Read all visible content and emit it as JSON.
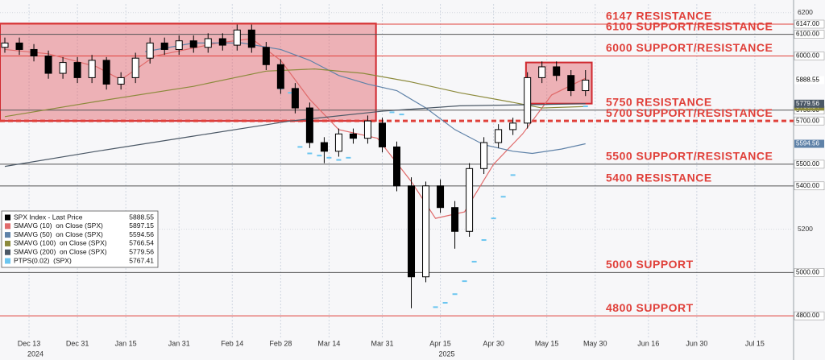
{
  "chart_data": {
    "type": "candlestick",
    "xlim": [
      0,
      164
    ],
    "ylim": [
      4700,
      6240
    ],
    "xticks": [
      {
        "value": 6,
        "label": "Dec 13"
      },
      {
        "value": 16,
        "label": "Dec 31"
      },
      {
        "value": 26,
        "label": "Jan 15"
      },
      {
        "value": 37,
        "label": "Jan 31"
      },
      {
        "value": 48,
        "label": "Feb 14"
      },
      {
        "value": 58,
        "label": "Feb 28"
      },
      {
        "value": 68,
        "label": "Mar 14"
      },
      {
        "value": 79,
        "label": "Mar 31"
      },
      {
        "value": 91,
        "label": "Apr 15"
      },
      {
        "value": 102,
        "label": "Apr 30"
      },
      {
        "value": 113,
        "label": "May 15"
      },
      {
        "value": 123,
        "label": "May 30"
      },
      {
        "value": 134,
        "label": "Jun 16"
      },
      {
        "value": 144,
        "label": "Jun 30"
      },
      {
        "value": 156,
        "label": "Jul 15"
      }
    ],
    "year_labels": [
      {
        "value": 6,
        "label": "2024"
      },
      {
        "value": 91,
        "label": "2025"
      }
    ],
    "yticks": [
      5200,
      6200
    ],
    "grid": true,
    "legend_position": "lower left",
    "candles": {
      "name": "SPX Index - Last Price",
      "up_color": "#ffffff",
      "down_color": "#000000",
      "x": [
        1,
        4,
        7,
        10,
        13,
        16,
        19,
        22,
        25,
        28,
        31,
        34,
        37,
        40,
        43,
        46,
        49,
        52,
        55,
        58,
        61,
        64,
        67,
        70,
        73,
        76,
        79,
        82,
        85,
        88,
        91,
        94,
        97,
        100,
        103,
        106,
        109,
        112,
        115,
        118,
        121
      ],
      "open": [
        6040,
        6060,
        6030,
        6000,
        5920,
        5970,
        5900,
        5980,
        5870,
        5900,
        5990,
        6060,
        6030,
        6070,
        6040,
        6080,
        6050,
        6120,
        6040,
        5960,
        5850,
        5760,
        5600,
        5560,
        5640,
        5620,
        5690,
        5580,
        5400,
        4980,
        5400,
        5300,
        5190,
        5480,
        5600,
        5660,
        5690,
        5900,
        5950,
        5910,
        5840
      ],
      "high": [
        6085,
        6085,
        6055,
        6025,
        5995,
        5995,
        6005,
        5995,
        5925,
        6015,
        6085,
        6085,
        6095,
        6095,
        6105,
        6105,
        6145,
        6145,
        6065,
        5985,
        5875,
        5785,
        5625,
        5665,
        5665,
        5725,
        5715,
        5605,
        5440,
        5420,
        5430,
        5330,
        5505,
        5625,
        5685,
        5715,
        5925,
        5975,
        5975,
        5935,
        5935
      ],
      "low": [
        6015,
        6005,
        5975,
        5895,
        5895,
        5875,
        5875,
        5845,
        5845,
        5875,
        5965,
        6005,
        6005,
        6015,
        6015,
        6025,
        6025,
        6015,
        5935,
        5825,
        5735,
        5575,
        5505,
        5535,
        5595,
        5595,
        5555,
        5375,
        4835,
        4955,
        5275,
        5110,
        5165,
        5455,
        5575,
        5635,
        5665,
        5875,
        5885,
        5815,
        5815
      ],
      "close": [
        6060,
        6030,
        6000,
        5920,
        5970,
        5900,
        5980,
        5870,
        5900,
        5990,
        6060,
        6030,
        6070,
        6040,
        6080,
        6050,
        6120,
        6040,
        5960,
        5850,
        5760,
        5600,
        5560,
        5640,
        5620,
        5700,
        5580,
        5400,
        4980,
        5400,
        5300,
        5190,
        5480,
        5600,
        5660,
        5690,
        5900,
        5950,
        5910,
        5840,
        5888.55
      ]
    },
    "lines": [
      {
        "name": "SMAVG (10)  on Close (SPX)",
        "color": "#e06a6a",
        "x": [
          1,
          10,
          20,
          25,
          32,
          45,
          52,
          58,
          64,
          70,
          78,
          85,
          90,
          96,
          102,
          108,
          114,
          121
        ],
        "values": [
          6030,
          6010,
          5950,
          5890,
          6000,
          6060,
          6080,
          5980,
          5800,
          5660,
          5620,
          5420,
          5250,
          5280,
          5500,
          5640,
          5820,
          5897.15
        ]
      },
      {
        "name": "SMAVG (50)  on Close (SPX)",
        "color": "#5f82a8",
        "x": [
          30,
          40,
          50,
          58,
          64,
          70,
          76,
          82,
          88,
          94,
          100,
          106,
          110,
          116,
          121
        ],
        "values": [
          6020,
          6060,
          6060,
          6030,
          5980,
          5910,
          5870,
          5840,
          5760,
          5660,
          5590,
          5560,
          5550,
          5570,
          5594.56
        ]
      },
      {
        "name": "SMAVG (100)  on Close (SPX)",
        "color": "#8c8a3c",
        "x": [
          1,
          20,
          40,
          55,
          65,
          75,
          85,
          95,
          105,
          112,
          121
        ],
        "values": [
          5720,
          5790,
          5860,
          5930,
          5940,
          5920,
          5880,
          5830,
          5790,
          5760,
          5766.54
        ]
      },
      {
        "name": "SMAVG (200)  on Close (SPX)",
        "color": "#4b5866",
        "x": [
          1,
          20,
          40,
          60,
          79,
          95,
          110,
          121
        ],
        "values": [
          5490,
          5560,
          5630,
          5700,
          5745,
          5770,
          5775,
          5779.56
        ]
      }
    ],
    "ptps": {
      "name": "PTPS(0.02)  (SPX)",
      "color": "#6cc6f0",
      "x": [
        58,
        60,
        62,
        64,
        66,
        68,
        70,
        72,
        81,
        83,
        90,
        92,
        94,
        96,
        98,
        100,
        102,
        104,
        106,
        121
      ],
      "values": [
        5850,
        5830,
        5580,
        5550,
        5540,
        5530,
        5520,
        5530,
        5740,
        5730,
        4840,
        4860,
        4900,
        4960,
        5050,
        5150,
        5250,
        5350,
        5450,
        5767.41
      ]
    },
    "zones": [
      {
        "x": [
          0,
          77.7
        ],
        "y": [
          5700,
          6150
        ],
        "color": "#e05a64"
      },
      {
        "x": [
          108.7,
          122.3
        ],
        "y": [
          5780,
          5970
        ],
        "color": "#e05a64"
      }
    ],
    "levels": [
      {
        "value": 6147,
        "tag": "6147.00",
        "label": "6147 RESISTANCE",
        "color": "#e0403a",
        "dashed": false
      },
      {
        "value": 6100,
        "tag": "6100.00",
        "label": "6100 SUPPORT/RESISTANCE",
        "color": "#555555",
        "dashed": false
      },
      {
        "value": 6000,
        "tag": "6000.00",
        "label": "6000 SUPPORT/RESISTANCE",
        "color": "#e0403a",
        "dashed": false
      },
      {
        "value": 5750,
        "tag": "5750.00",
        "label": "5750 RESISTANCE",
        "color": "#555555",
        "dashed": false
      },
      {
        "value": 5700,
        "tag": "5700.00",
        "label": "5700 SUPPORT/RESISTANCE",
        "color": "#e0403a",
        "dashed": true
      },
      {
        "value": 5500,
        "tag": "5500.00",
        "label": "5500 SUPPORT/RESISTANCE",
        "color": "#555555",
        "dashed": false
      },
      {
        "value": 5400,
        "tag": "5400.00",
        "label": "5400 RESISTANCE",
        "color": "#555555",
        "dashed": false
      },
      {
        "value": 5000,
        "tag": "5000.00",
        "label": "5000 SUPPORT",
        "color": "#555555",
        "dashed": false
      },
      {
        "value": 4800,
        "tag": "4800.00",
        "label": "4800 SUPPORT",
        "color": "#e0403a",
        "dashed": false
      }
    ]
  }
}
